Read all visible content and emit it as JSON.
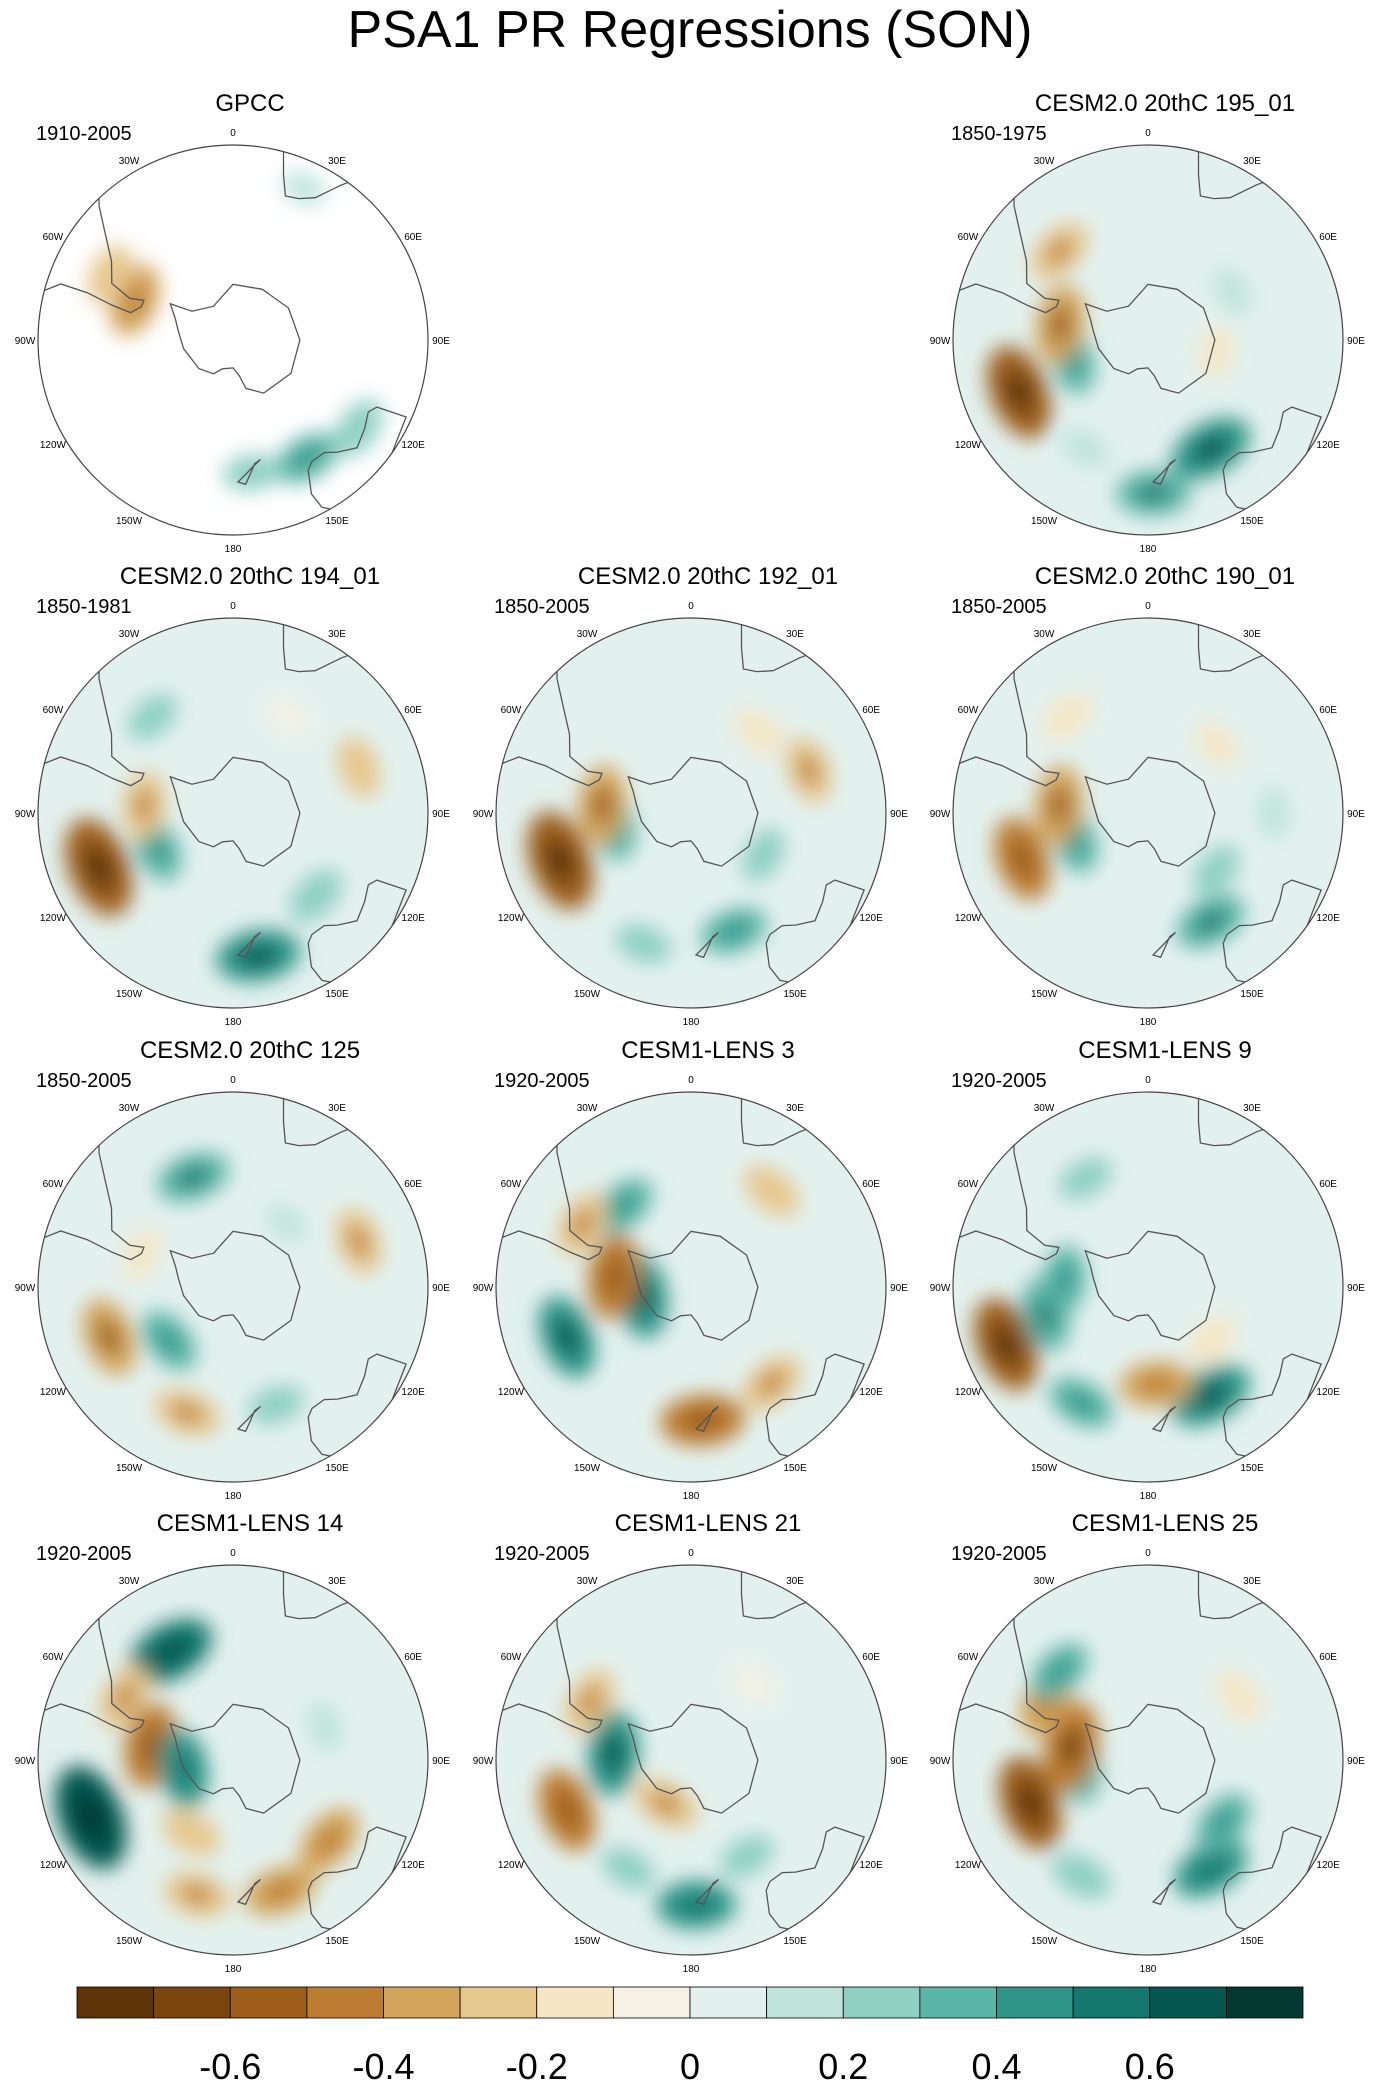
{
  "figure": {
    "title": "PSA1 PR Regressions (SON)"
  },
  "lon_labels": [
    "0",
    "30E",
    "60E",
    "90E",
    "120E",
    "150E",
    "180",
    "150W",
    "120W",
    "90W",
    "60W",
    "30W"
  ],
  "panels": [
    {
      "title": "GPCC",
      "period": "1910-2005",
      "row": 0,
      "col": 0,
      "observational": true,
      "blobs": [
        {
          "lon": -68,
          "lat": -52,
          "value": -0.35
        },
        {
          "lon": -62,
          "lat": -40,
          "value": -0.25
        },
        {
          "lon": 148,
          "lat": -40,
          "value": 0.3
        },
        {
          "lon": 125,
          "lat": -35,
          "value": 0.25
        },
        {
          "lon": 172,
          "lat": -42,
          "value": 0.2
        },
        {
          "lon": 25,
          "lat": -30,
          "value": 0.1
        }
      ]
    },
    {
      "title": "CESM2.0 20thC 195_01",
      "period": "1850-1975",
      "row": 0,
      "col": 2,
      "blobs": [
        {
          "lon": -112,
          "lat": -40,
          "value": -0.55
        },
        {
          "lon": -105,
          "lat": -62,
          "value": 0.3
        },
        {
          "lon": -80,
          "lat": -58,
          "value": -0.4
        },
        {
          "lon": 150,
          "lat": -45,
          "value": 0.45
        },
        {
          "lon": 178,
          "lat": -35,
          "value": 0.35
        },
        {
          "lon": -45,
          "lat": -45,
          "value": -0.3
        },
        {
          "lon": 60,
          "lat": -55,
          "value": 0.15
        },
        {
          "lon": 100,
          "lat": -65,
          "value": -0.15
        },
        {
          "lon": -150,
          "lat": -45,
          "value": 0.15
        }
      ]
    },
    {
      "title": "CESM2.0 20thC 194_01",
      "period": "1850-1981",
      "row": 1,
      "col": 0,
      "blobs": [
        {
          "lon": -112,
          "lat": -38,
          "value": -0.6
        },
        {
          "lon": -115,
          "lat": -60,
          "value": 0.3
        },
        {
          "lon": 170,
          "lat": -38,
          "value": 0.45
        },
        {
          "lon": 135,
          "lat": -48,
          "value": 0.25
        },
        {
          "lon": -85,
          "lat": -58,
          "value": -0.3
        },
        {
          "lon": 70,
          "lat": -42,
          "value": -0.25
        },
        {
          "lon": -40,
          "lat": -45,
          "value": 0.2
        },
        {
          "lon": 30,
          "lat": -50,
          "value": -0.1
        }
      ]
    },
    {
      "title": "CESM2.0 20thC 192_01",
      "period": "1850-2005",
      "row": 1,
      "col": 1,
      "blobs": [
        {
          "lon": -110,
          "lat": -40,
          "value": -0.6
        },
        {
          "lon": -100,
          "lat": -62,
          "value": 0.3
        },
        {
          "lon": -85,
          "lat": -58,
          "value": -0.4
        },
        {
          "lon": 160,
          "lat": -45,
          "value": 0.3
        },
        {
          "lon": -160,
          "lat": -40,
          "value": 0.2
        },
        {
          "lon": 70,
          "lat": -45,
          "value": -0.3
        },
        {
          "lon": 40,
          "lat": -52,
          "value": -0.2
        },
        {
          "lon": 120,
          "lat": -60,
          "value": 0.2
        }
      ]
    },
    {
      "title": "CESM2.0 20thC 190_01",
      "period": "1850-2005",
      "row": 1,
      "col": 2,
      "blobs": [
        {
          "lon": -110,
          "lat": -42,
          "value": -0.45
        },
        {
          "lon": -110,
          "lat": -62,
          "value": 0.3
        },
        {
          "lon": -85,
          "lat": -58,
          "value": -0.4
        },
        {
          "lon": 150,
          "lat": -45,
          "value": 0.35
        },
        {
          "lon": 130,
          "lat": -58,
          "value": 0.2
        },
        {
          "lon": -40,
          "lat": -45,
          "value": -0.2
        },
        {
          "lon": 45,
          "lat": -55,
          "value": -0.15
        },
        {
          "lon": 90,
          "lat": -45,
          "value": 0.15
        }
      ]
    },
    {
      "title": "CESM2.0 20thC 125",
      "period": "1850-2005",
      "row": 2,
      "col": 0,
      "blobs": [
        {
          "lon": -112,
          "lat": -42,
          "value": -0.4
        },
        {
          "lon": -130,
          "lat": -60,
          "value": 0.3
        },
        {
          "lon": -20,
          "lat": -48,
          "value": 0.35
        },
        {
          "lon": 70,
          "lat": -42,
          "value": -0.3
        },
        {
          "lon": -160,
          "lat": -42,
          "value": -0.3
        },
        {
          "lon": 160,
          "lat": -45,
          "value": 0.2
        },
        {
          "lon": -70,
          "lat": -55,
          "value": -0.15
        },
        {
          "lon": 40,
          "lat": -60,
          "value": 0.1
        }
      ]
    },
    {
      "title": "CESM1-LENS 3",
      "period": "1920-2005",
      "row": 2,
      "col": 1,
      "blobs": [
        {
          "lon": -112,
          "lat": -42,
          "value": 0.45
        },
        {
          "lon": -100,
          "lat": -72,
          "value": 0.45
        },
        {
          "lon": -82,
          "lat": -62,
          "value": -0.45
        },
        {
          "lon": 175,
          "lat": -42,
          "value": -0.45
        },
        {
          "lon": 140,
          "lat": -45,
          "value": -0.3
        },
        {
          "lon": -40,
          "lat": -52,
          "value": 0.3
        },
        {
          "lon": 40,
          "lat": -45,
          "value": -0.25
        },
        {
          "lon": -60,
          "lat": -45,
          "value": -0.3
        }
      ]
    },
    {
      "title": "CESM1-LENS 9",
      "period": "1920-2005",
      "row": 2,
      "col": 2,
      "blobs": [
        {
          "lon": -112,
          "lat": -35,
          "value": -0.55
        },
        {
          "lon": -105,
          "lat": -52,
          "value": 0.35
        },
        {
          "lon": 150,
          "lat": -45,
          "value": 0.45
        },
        {
          "lon": 175,
          "lat": -55,
          "value": -0.35
        },
        {
          "lon": -150,
          "lat": -42,
          "value": 0.3
        },
        {
          "lon": -85,
          "lat": -60,
          "value": 0.3
        },
        {
          "lon": 130,
          "lat": -60,
          "value": -0.2
        },
        {
          "lon": -30,
          "lat": -45,
          "value": 0.2
        }
      ]
    },
    {
      "title": "CESM1-LENS 14",
      "period": "1920-2005",
      "row": 3,
      "col": 0,
      "blobs": [
        {
          "lon": -112,
          "lat": -35,
          "value": 0.65
        },
        {
          "lon": 160,
          "lat": -40,
          "value": -0.35
        },
        {
          "lon": 130,
          "lat": -45,
          "value": -0.35
        },
        {
          "lon": -165,
          "lat": -40,
          "value": -0.3
        },
        {
          "lon": -150,
          "lat": -60,
          "value": -0.25
        },
        {
          "lon": -30,
          "lat": -45,
          "value": 0.5
        },
        {
          "lon": -60,
          "lat": -45,
          "value": -0.3
        },
        {
          "lon": -80,
          "lat": -60,
          "value": -0.45
        },
        {
          "lon": -100,
          "lat": -72,
          "value": 0.4
        },
        {
          "lon": 70,
          "lat": -55,
          "value": 0.15
        }
      ]
    },
    {
      "title": "CESM1-LENS 21",
      "period": "1920-2005",
      "row": 3,
      "col": 1,
      "blobs": [
        {
          "lon": -112,
          "lat": -42,
          "value": -0.45
        },
        {
          "lon": -85,
          "lat": -62,
          "value": 0.45
        },
        {
          "lon": -60,
          "lat": -48,
          "value": -0.3
        },
        {
          "lon": -150,
          "lat": -45,
          "value": 0.2
        },
        {
          "lon": 178,
          "lat": -38,
          "value": 0.4
        },
        {
          "lon": 150,
          "lat": -50,
          "value": 0.2
        },
        {
          "lon": -150,
          "lat": -72,
          "value": -0.3
        },
        {
          "lon": 40,
          "lat": -55,
          "value": -0.1
        }
      ]
    },
    {
      "title": "CESM1-LENS 25",
      "period": "1920-2005",
      "row": 3,
      "col": 2,
      "blobs": [
        {
          "lon": -110,
          "lat": -45,
          "value": -0.55
        },
        {
          "lon": -95,
          "lat": -65,
          "value": 0.35
        },
        {
          "lon": -80,
          "lat": -62,
          "value": -0.5
        },
        {
          "lon": -60,
          "lat": -48,
          "value": -0.35
        },
        {
          "lon": 150,
          "lat": -45,
          "value": 0.4
        },
        {
          "lon": 130,
          "lat": -55,
          "value": 0.3
        },
        {
          "lon": -150,
          "lat": -42,
          "value": 0.25
        },
        {
          "lon": -45,
          "lat": -45,
          "value": 0.3
        },
        {
          "lon": 55,
          "lat": -50,
          "value": -0.2
        }
      ]
    }
  ],
  "colorbar": {
    "boundaries": [
      -0.7,
      -0.6,
      -0.5,
      -0.4,
      -0.3,
      -0.2,
      -0.1,
      0,
      0.1,
      0.2,
      0.3,
      0.4,
      0.5,
      0.6,
      0.7
    ],
    "colors": [
      "#5c3408",
      "#7b460e",
      "#9c5e1a",
      "#bc7d32",
      "#d3a55c",
      "#e6c88e",
      "#f5e6c6",
      "#f5f1e4",
      "#e3f1ee",
      "#bfe4dc",
      "#8fd0c3",
      "#5cb6a8",
      "#2f9589",
      "#14786e",
      "#06574f",
      "#023a33"
    ],
    "tick_labels": [
      {
        "value": -0.6,
        "label": "-0.6"
      },
      {
        "value": -0.4,
        "label": "-0.4"
      },
      {
        "value": -0.2,
        "label": "-0.2"
      },
      {
        "value": 0,
        "label": "0"
      },
      {
        "value": 0.2,
        "label": "0.2"
      },
      {
        "value": 0.4,
        "label": "0.4"
      },
      {
        "value": 0.6,
        "label": "0.6"
      }
    ]
  }
}
